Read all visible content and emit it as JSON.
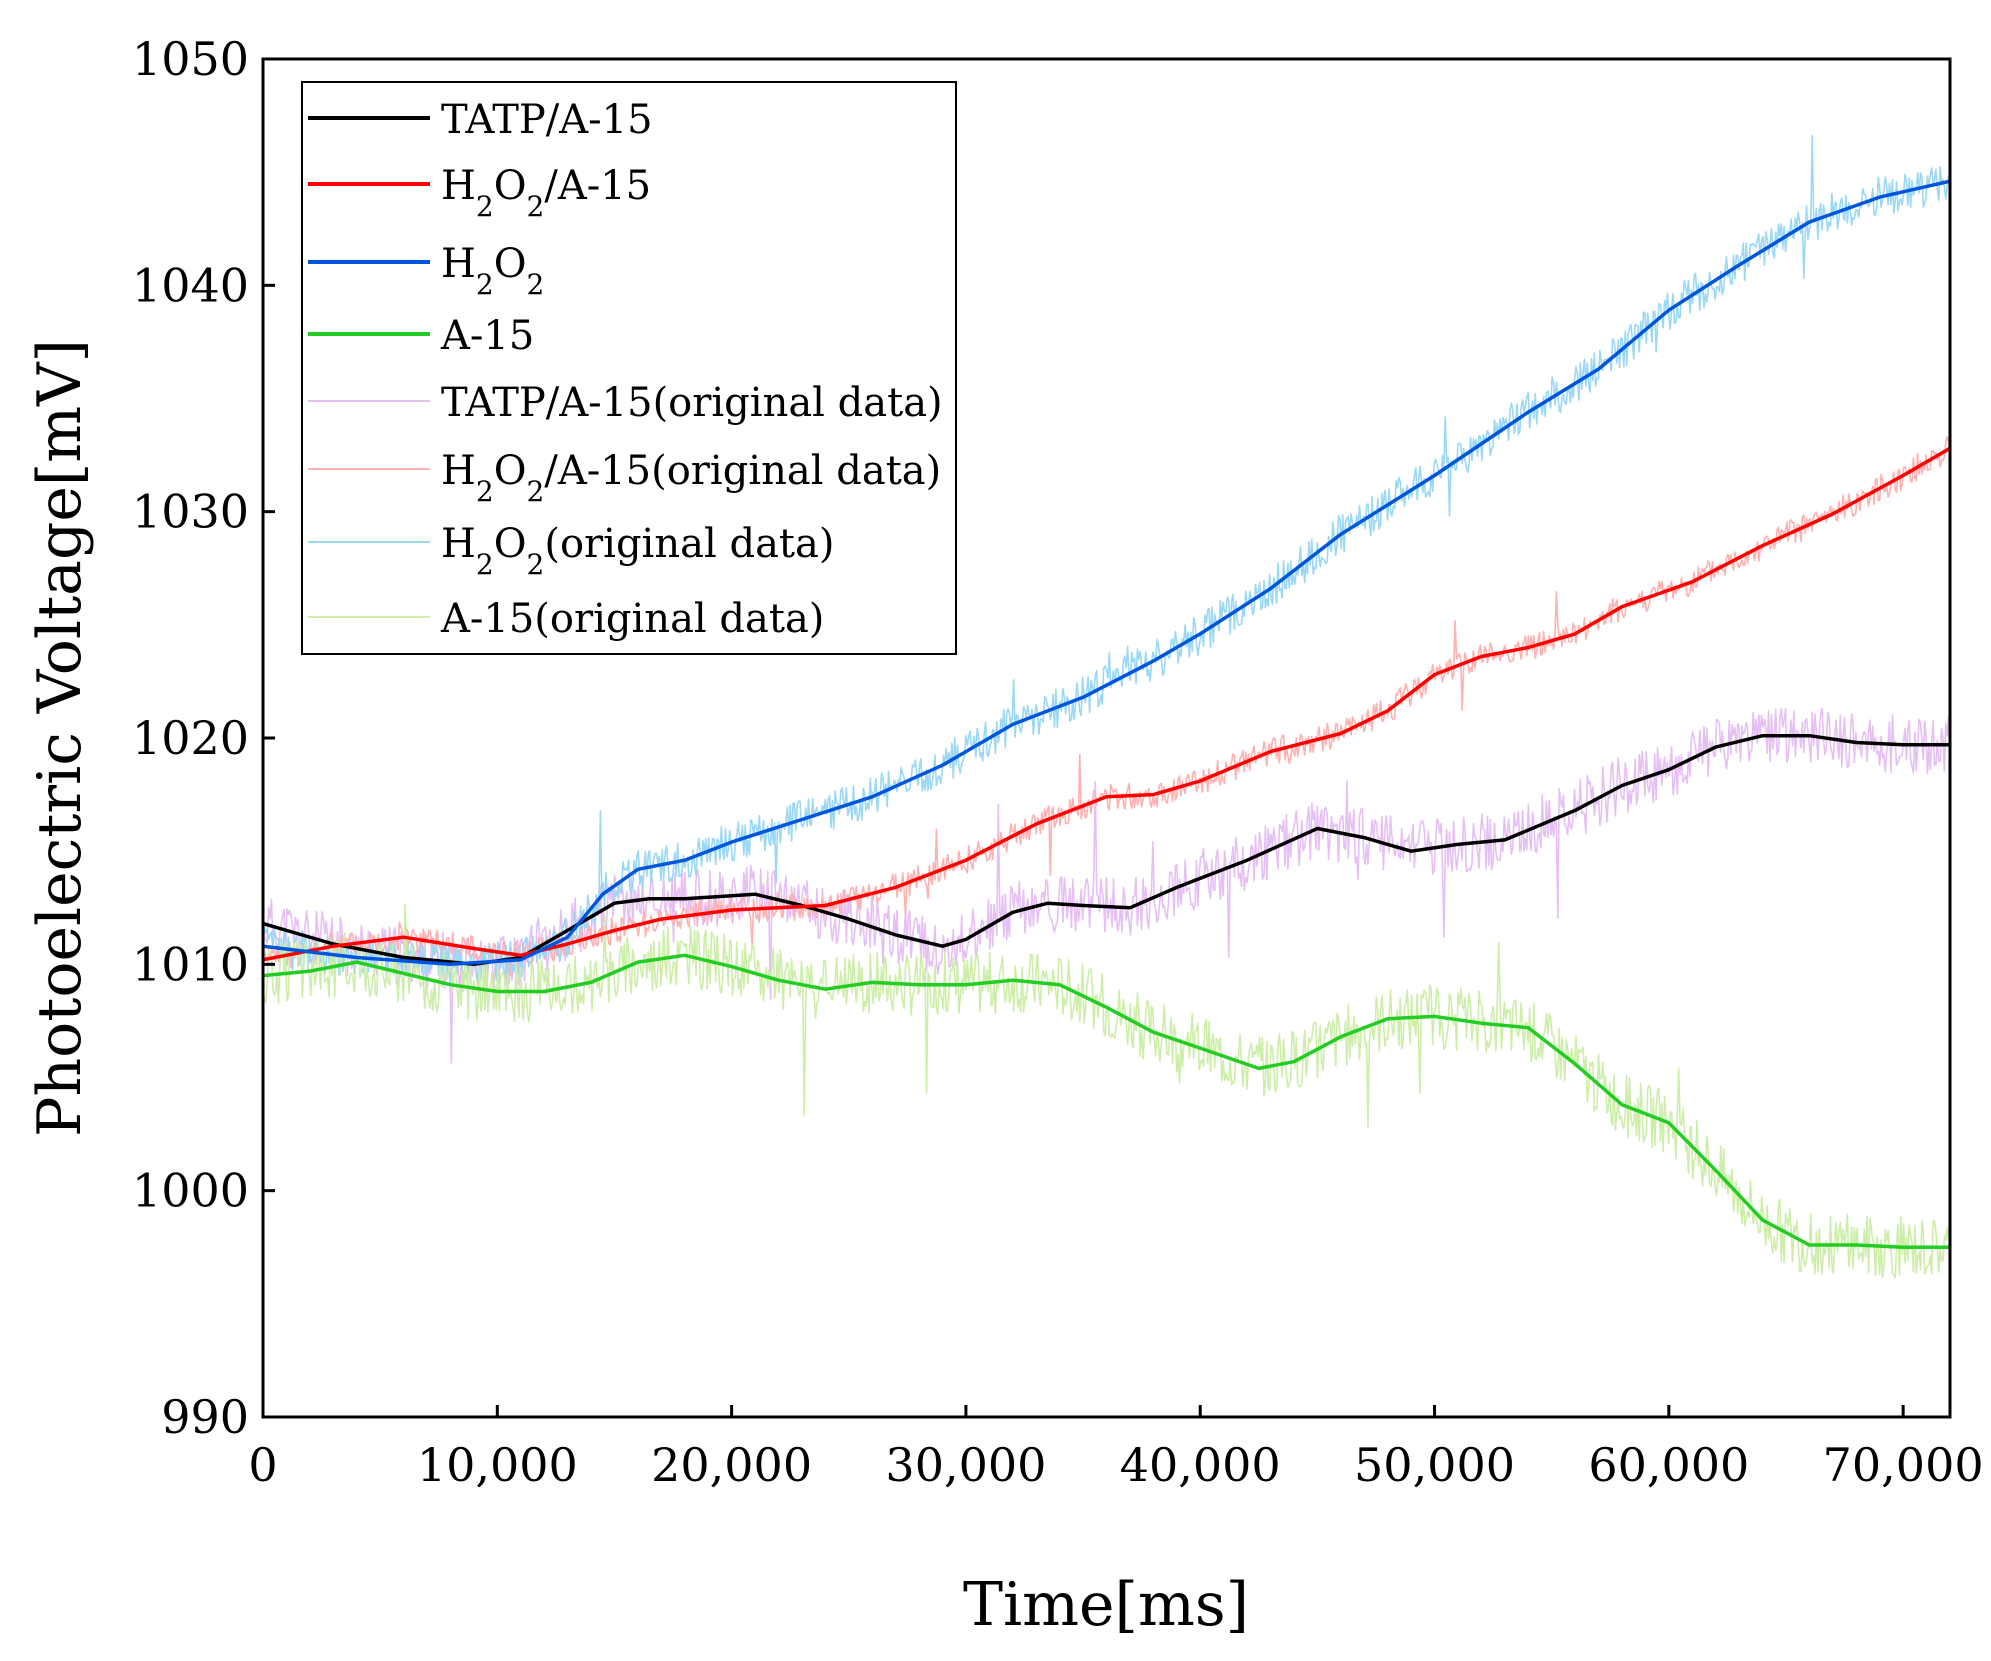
{
  "chart_data": {
    "type": "line",
    "title": "",
    "xlabel": "Time[ms]",
    "ylabel": "Photoelectric Voltage[mV]",
    "xlim": [
      0,
      72000
    ],
    "ylim": [
      990,
      1050
    ],
    "xticks": [
      0,
      10000,
      20000,
      30000,
      40000,
      50000,
      60000,
      70000
    ],
    "xtick_labels": [
      "0",
      "10,000",
      "20,000",
      "30,000",
      "40,000",
      "50,000",
      "60,000",
      "70,000"
    ],
    "yticks": [
      990,
      1000,
      1010,
      1020,
      1030,
      1040,
      1050
    ],
    "ytick_labels": [
      "990",
      "1000",
      "1010",
      "1020",
      "1030",
      "1040",
      "1050"
    ],
    "grid": false,
    "legend_position": "top-left",
    "series": [
      {
        "name": "TATP/A-15",
        "label_main": "TATP/A-15",
        "label_sub": "",
        "label_tail": "",
        "color": "#000000",
        "kind": "smooth",
        "points": [
          [
            0,
            1011.8
          ],
          [
            3000,
            1010.9
          ],
          [
            6000,
            1010.3
          ],
          [
            9000,
            1010.0
          ],
          [
            11000,
            1010.3
          ],
          [
            13000,
            1011.5
          ],
          [
            15000,
            1012.7
          ],
          [
            16500,
            1012.9
          ],
          [
            18000,
            1012.9
          ],
          [
            21000,
            1013.1
          ],
          [
            23000,
            1012.6
          ],
          [
            25000,
            1012.0
          ],
          [
            27000,
            1011.3
          ],
          [
            29000,
            1010.8
          ],
          [
            30000,
            1011.1
          ],
          [
            32000,
            1012.3
          ],
          [
            33500,
            1012.7
          ],
          [
            35000,
            1012.6
          ],
          [
            37000,
            1012.5
          ],
          [
            39000,
            1013.4
          ],
          [
            42000,
            1014.6
          ],
          [
            45000,
            1016.0
          ],
          [
            47000,
            1015.6
          ],
          [
            49000,
            1015.0
          ],
          [
            51000,
            1015.3
          ],
          [
            53000,
            1015.5
          ],
          [
            56000,
            1016.8
          ],
          [
            58000,
            1017.9
          ],
          [
            60000,
            1018.6
          ],
          [
            62000,
            1019.6
          ],
          [
            64000,
            1020.1
          ],
          [
            66000,
            1020.1
          ],
          [
            68000,
            1019.8
          ],
          [
            70000,
            1019.7
          ],
          [
            72000,
            1019.7
          ]
        ]
      },
      {
        "name": "H2O2/A-15",
        "label_main": "H",
        "label_sub": "2",
        "label_tail": "O₂/A-15",
        "color": "#ff0000",
        "kind": "smooth",
        "points": [
          [
            0,
            1010.2
          ],
          [
            3000,
            1010.8
          ],
          [
            6000,
            1011.2
          ],
          [
            9000,
            1010.7
          ],
          [
            11000,
            1010.4
          ],
          [
            13000,
            1010.9
          ],
          [
            15000,
            1011.5
          ],
          [
            17000,
            1012.0
          ],
          [
            20000,
            1012.4
          ],
          [
            24000,
            1012.6
          ],
          [
            27000,
            1013.4
          ],
          [
            30000,
            1014.6
          ],
          [
            33000,
            1016.2
          ],
          [
            36000,
            1017.4
          ],
          [
            38000,
            1017.5
          ],
          [
            40000,
            1018.1
          ],
          [
            43000,
            1019.4
          ],
          [
            46000,
            1020.2
          ],
          [
            48000,
            1021.2
          ],
          [
            50000,
            1022.8
          ],
          [
            52000,
            1023.6
          ],
          [
            54000,
            1024.0
          ],
          [
            56000,
            1024.6
          ],
          [
            58000,
            1025.8
          ],
          [
            61000,
            1026.9
          ],
          [
            64000,
            1028.5
          ],
          [
            67000,
            1029.9
          ],
          [
            70000,
            1031.6
          ],
          [
            72000,
            1032.8
          ]
        ]
      },
      {
        "name": "H2O2",
        "label_main": "H",
        "label_sub": "2",
        "label_tail": "O₂",
        "color": "#0055dd",
        "kind": "smooth",
        "points": [
          [
            0,
            1010.8
          ],
          [
            4000,
            1010.3
          ],
          [
            8000,
            1010.0
          ],
          [
            11000,
            1010.2
          ],
          [
            13000,
            1011.2
          ],
          [
            14500,
            1013.1
          ],
          [
            16000,
            1014.2
          ],
          [
            18000,
            1014.6
          ],
          [
            20000,
            1015.4
          ],
          [
            23000,
            1016.4
          ],
          [
            26000,
            1017.4
          ],
          [
            29000,
            1018.8
          ],
          [
            32000,
            1020.6
          ],
          [
            35000,
            1021.8
          ],
          [
            38000,
            1023.4
          ],
          [
            40000,
            1024.6
          ],
          [
            43000,
            1026.6
          ],
          [
            46000,
            1029.0
          ],
          [
            50000,
            1031.6
          ],
          [
            54000,
            1034.4
          ],
          [
            57000,
            1036.3
          ],
          [
            60000,
            1038.9
          ],
          [
            63000,
            1040.9
          ],
          [
            66000,
            1042.8
          ],
          [
            69000,
            1043.9
          ],
          [
            72000,
            1044.6
          ]
        ]
      },
      {
        "name": "A-15",
        "label_main": "A-15",
        "label_sub": "",
        "label_tail": "",
        "color": "#22cc22",
        "kind": "smooth",
        "points": [
          [
            0,
            1009.5
          ],
          [
            2000,
            1009.7
          ],
          [
            4000,
            1010.1
          ],
          [
            6000,
            1009.6
          ],
          [
            8000,
            1009.1
          ],
          [
            10000,
            1008.8
          ],
          [
            12000,
            1008.8
          ],
          [
            14000,
            1009.2
          ],
          [
            16000,
            1010.1
          ],
          [
            18000,
            1010.4
          ],
          [
            20000,
            1009.9
          ],
          [
            22000,
            1009.3
          ],
          [
            24000,
            1008.9
          ],
          [
            26000,
            1009.2
          ],
          [
            28000,
            1009.1
          ],
          [
            30000,
            1009.1
          ],
          [
            32000,
            1009.3
          ],
          [
            34000,
            1009.1
          ],
          [
            36000,
            1008.1
          ],
          [
            38000,
            1007.0
          ],
          [
            40000,
            1006.3
          ],
          [
            42500,
            1005.4
          ],
          [
            44000,
            1005.7
          ],
          [
            46000,
            1006.8
          ],
          [
            48000,
            1007.6
          ],
          [
            50000,
            1007.7
          ],
          [
            52000,
            1007.4
          ],
          [
            54000,
            1007.2
          ],
          [
            56000,
            1005.6
          ],
          [
            58000,
            1003.8
          ],
          [
            60000,
            1003.0
          ],
          [
            62000,
            1000.9
          ],
          [
            64000,
            998.7
          ],
          [
            66000,
            997.6
          ],
          [
            68000,
            997.6
          ],
          [
            70000,
            997.5
          ],
          [
            72000,
            997.5
          ]
        ]
      },
      {
        "name": "TATP/A-15(original data)",
        "label_main": "TATP/A-15(original data)",
        "label_sub": "",
        "label_tail": "",
        "color": "#e6bff5",
        "kind": "noisy",
        "amplitude": 1.3,
        "seed": 11,
        "source": 0
      },
      {
        "name": "H2O2/A-15(original data)",
        "label_main": "H",
        "label_sub": "2",
        "label_tail": "O₂/A-15(original data)",
        "color": "#ffb0b0",
        "kind": "noisy",
        "amplitude": 0.6,
        "seed": 23,
        "source": 1
      },
      {
        "name": "H2O2(original data)",
        "label_main": "H",
        "label_sub": "2",
        "label_tail": "O₂(original data)",
        "color": "#9ad8f5",
        "kind": "noisy",
        "amplitude": 0.9,
        "seed": 37,
        "source": 2
      },
      {
        "name": "A-15(original data)",
        "label_main": "A-15(original data)",
        "label_sub": "",
        "label_tail": "",
        "color": "#cdeea8",
        "kind": "noisy",
        "amplitude": 1.4,
        "seed": 51,
        "source": 3
      }
    ]
  }
}
